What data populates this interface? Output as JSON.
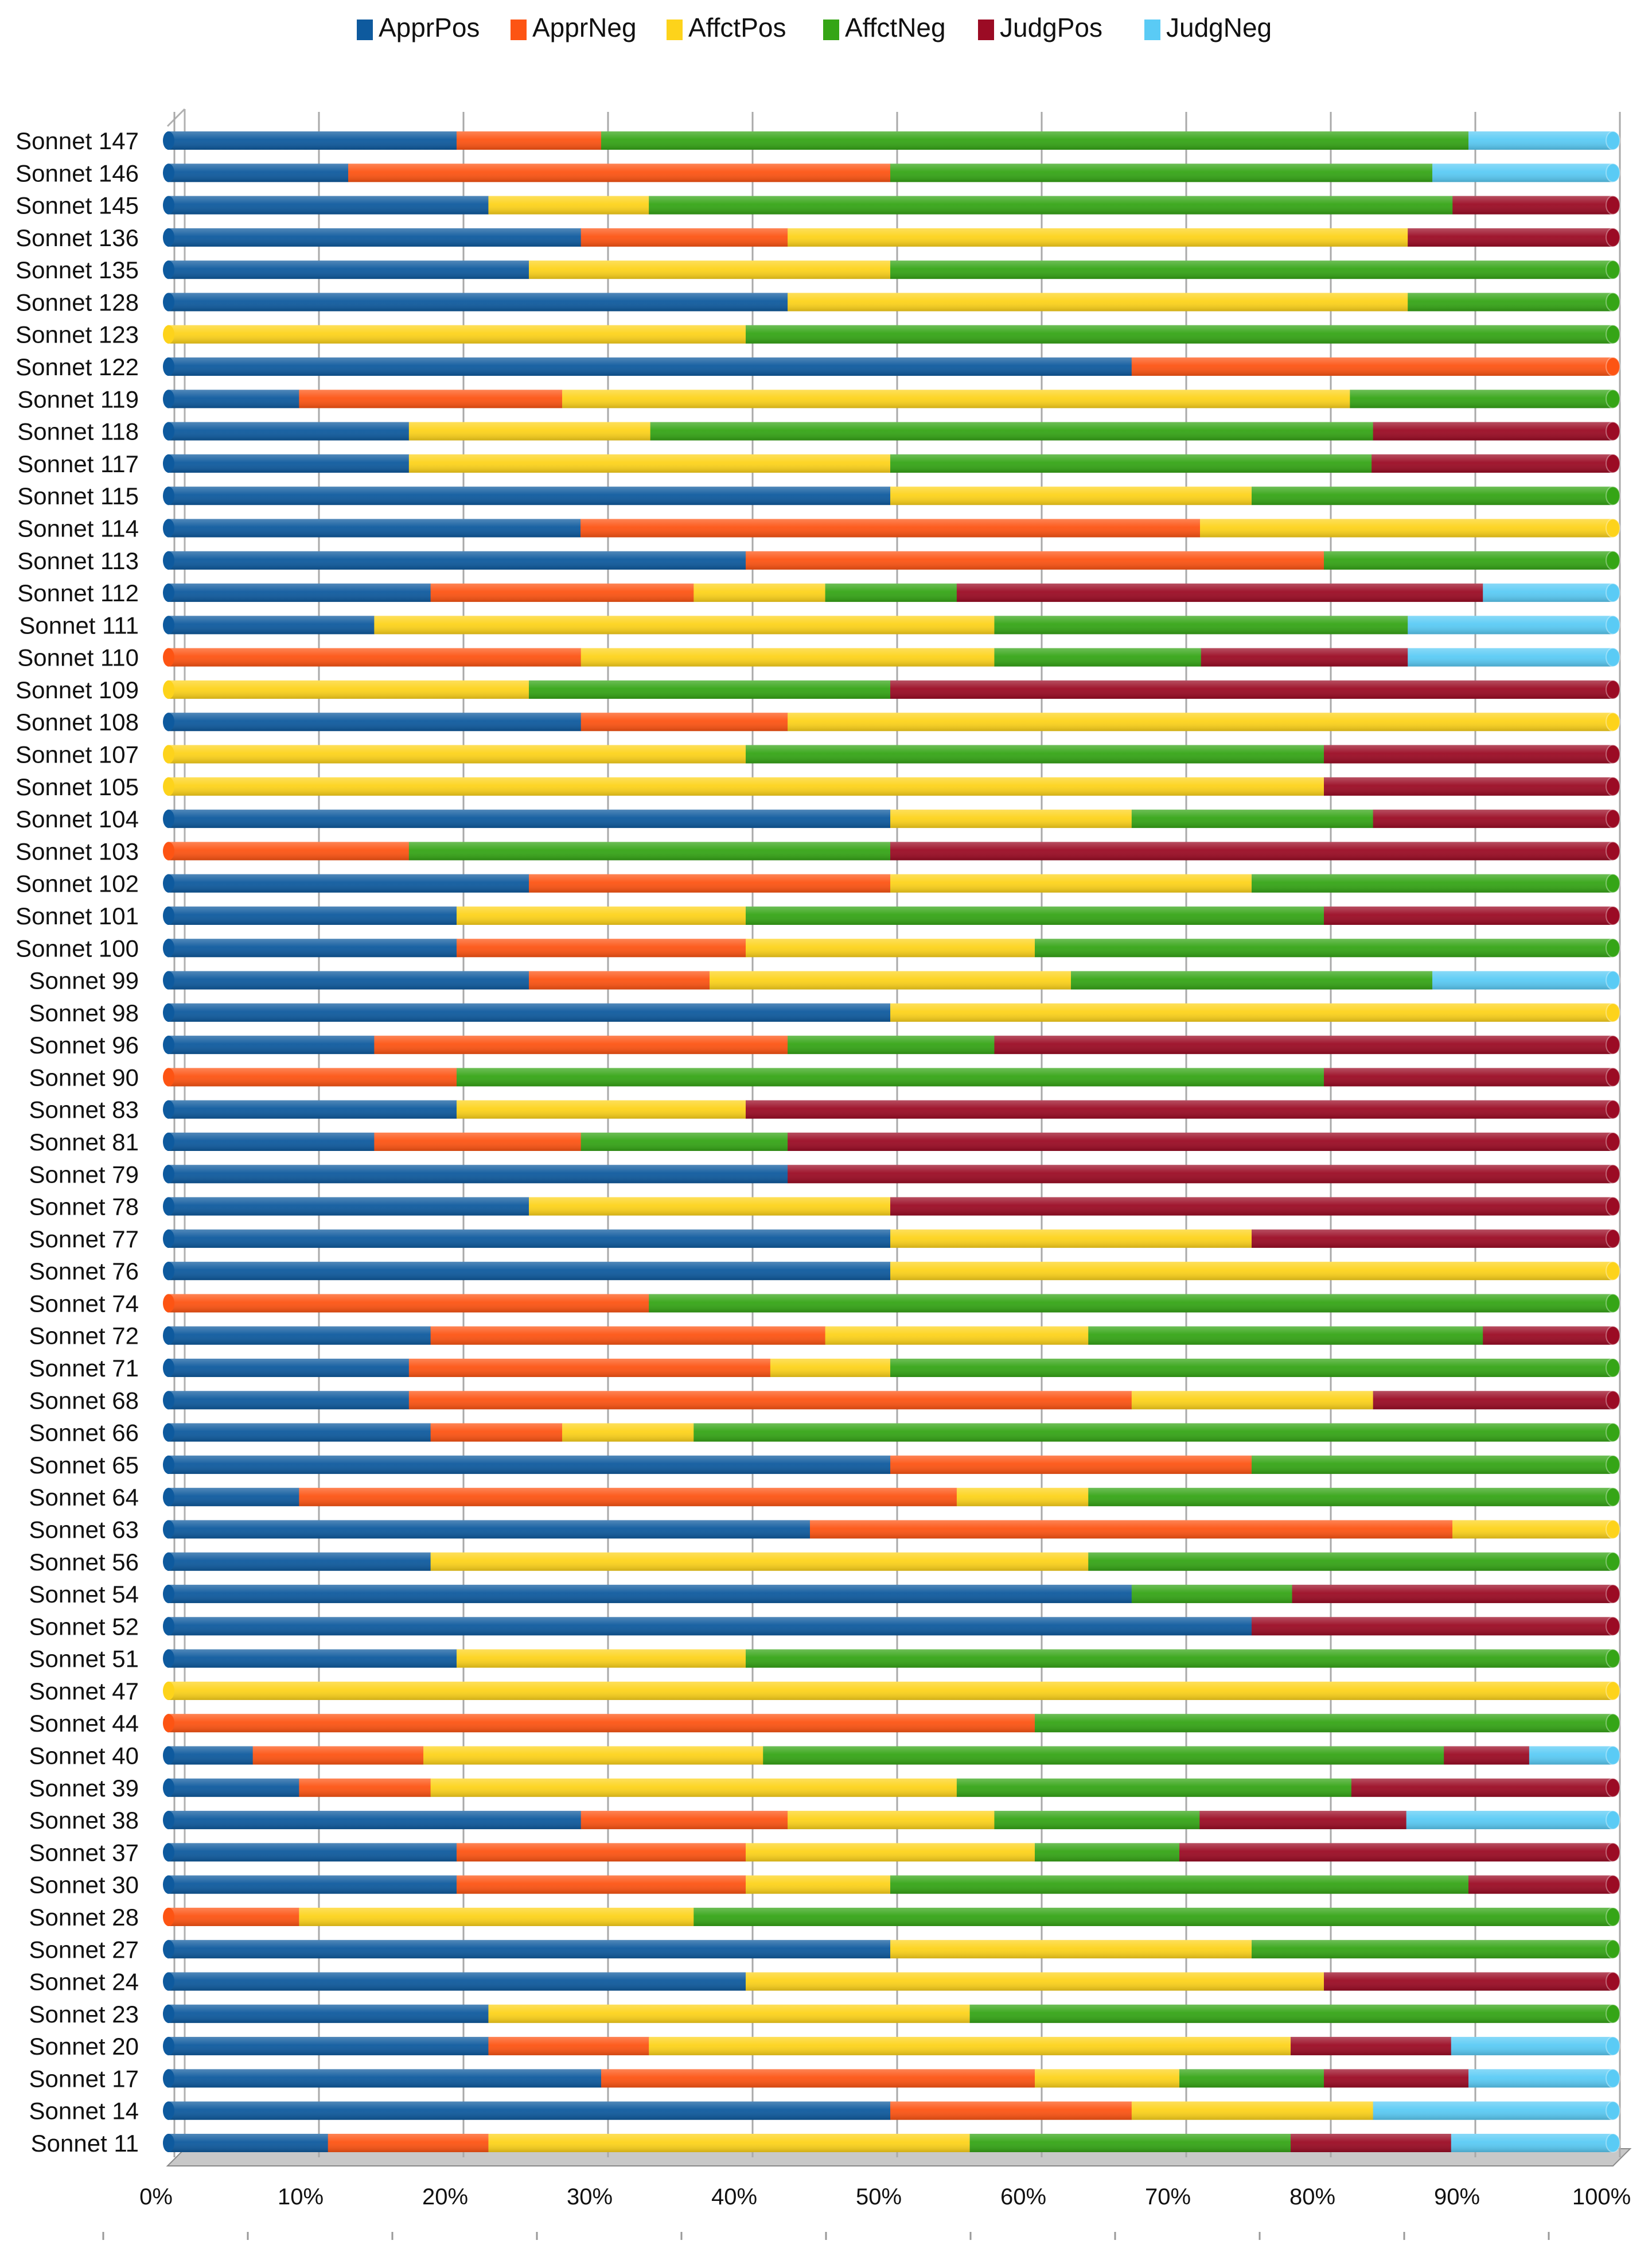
{
  "chart_data": {
    "type": "bar",
    "stacked": "percent",
    "orientation": "horizontal",
    "title": "",
    "xlabel": "",
    "ylabel": "",
    "xlim": [
      0,
      100
    ],
    "x_ticks": [
      "0%",
      "10%",
      "20%",
      "30%",
      "40%",
      "50%",
      "60%",
      "70%",
      "80%",
      "90%",
      "100%"
    ],
    "grid": true,
    "legend_position": "top",
    "series_names": [
      "ApprPos",
      "ApprNeg",
      "AffctPos",
      "AffctNeg",
      "JudgPos",
      "JudgNeg"
    ],
    "colors": [
      "#0e5a9e",
      "#fd5413",
      "#fdd31b",
      "#35a516",
      "#9b0b24",
      "#5acbf5"
    ],
    "categories": [
      "Sonnet 147",
      "Sonnet 146",
      "Sonnet 145",
      "Sonnet 136",
      "Sonnet 135",
      "Sonnet 128",
      "Sonnet 123",
      "Sonnet 122",
      "Sonnet 119",
      "Sonnet 118",
      "Sonnet 117",
      "Sonnet 115",
      "Sonnet 114",
      "Sonnet 113",
      "Sonnet 112",
      "Sonnet 111",
      "Sonnet 110",
      "Sonnet 109",
      "Sonnet 108",
      "Sonnet 107",
      "Sonnet 105",
      "Sonnet 104",
      "Sonnet 103",
      "Sonnet 102",
      "Sonnet 101",
      "Sonnet 100",
      "Sonnet 99",
      "Sonnet 98",
      "Sonnet 96",
      "Sonnet 90",
      "Sonnet 83",
      "Sonnet 81",
      "Sonnet 79",
      "Sonnet 78",
      "Sonnet 77",
      "Sonnet 76",
      "Sonnet 74",
      "Sonnet 72",
      "Sonnet 71",
      "Sonnet 68",
      "Sonnet 66",
      "Sonnet 65",
      "Sonnet 64",
      "Sonnet 63",
      "Sonnet 56",
      "Sonnet 54",
      "Sonnet 52",
      "Sonnet 51",
      "Sonnet 47",
      "Sonnet 44",
      "Sonnet 40",
      "Sonnet 39",
      "Sonnet 38",
      "Sonnet 37",
      "Sonnet 30",
      "Sonnet 28",
      "Sonnet 27",
      "Sonnet 24",
      "Sonnet 23",
      "Sonnet 20",
      "Sonnet 17",
      "Sonnet 14",
      "Sonnet 11"
    ],
    "series": [
      {
        "name": "ApprPos",
        "values": [
          20,
          12.5,
          22.2,
          28.6,
          25,
          42.9,
          0,
          66.7,
          9.1,
          16.7,
          16.7,
          50,
          28.6,
          40,
          18.2,
          14.3,
          0,
          0,
          28.6,
          0,
          0,
          50,
          0,
          25,
          20,
          20,
          25,
          50,
          14.3,
          0,
          20,
          14.3,
          42.9,
          25,
          50,
          50,
          0,
          18.2,
          16.7,
          16.7,
          18.2,
          50,
          9.1,
          44.4,
          18.2,
          66.7,
          75,
          20,
          0,
          0,
          5.9,
          9.1,
          28.6,
          20,
          20,
          0,
          50,
          40,
          22.2,
          22.2,
          30,
          50,
          11.1
        ]
      },
      {
        "name": "ApprNeg",
        "values": [
          10,
          37.5,
          0,
          14.3,
          0,
          0,
          0,
          33.3,
          18.2,
          0,
          0,
          0,
          42.9,
          40,
          18.2,
          0,
          28.6,
          0,
          14.3,
          0,
          0,
          0,
          16.7,
          25,
          0,
          20,
          12.5,
          0,
          28.6,
          20,
          0,
          14.3,
          0,
          0,
          0,
          0,
          33.3,
          27.3,
          25,
          50,
          9.1,
          25,
          45.5,
          44.4,
          0,
          0,
          0,
          0,
          0,
          60,
          11.8,
          9.1,
          14.3,
          20,
          20,
          9.1,
          0,
          0,
          0,
          11.1,
          30,
          16.7,
          11.1
        ]
      },
      {
        "name": "AffctPos",
        "values": [
          0,
          0,
          11.1,
          42.9,
          25,
          42.9,
          40,
          0,
          54.5,
          16.7,
          33.3,
          25,
          28.6,
          0,
          9.1,
          42.9,
          28.6,
          25,
          57.1,
          40,
          80,
          16.7,
          0,
          25,
          20,
          20,
          25,
          50,
          0,
          0,
          20,
          0,
          0,
          25,
          25,
          50,
          0,
          18.2,
          8.3,
          16.7,
          9.1,
          0,
          9.1,
          11.1,
          45.5,
          0,
          0,
          20,
          100,
          0,
          23.5,
          36.4,
          14.3,
          20,
          10,
          27.3,
          25,
          40,
          33.3,
          44.4,
          10,
          16.7,
          33.3
        ]
      },
      {
        "name": "AffctNeg",
        "values": [
          60,
          37.5,
          55.6,
          0,
          50,
          14.2,
          60,
          0,
          18.2,
          50,
          33.3,
          25,
          0,
          20,
          9.1,
          28.6,
          14.3,
          25,
          0,
          40,
          0,
          16.7,
          33.3,
          25,
          40,
          40,
          25,
          0,
          14.3,
          60,
          0,
          14.3,
          0,
          0,
          0,
          0,
          66.7,
          27.3,
          50,
          0,
          63.6,
          25,
          36.3,
          0,
          36.3,
          11.1,
          0,
          60,
          0,
          40,
          47.1,
          27.3,
          14.2,
          10,
          40,
          63.6,
          25,
          0,
          44.5,
          0,
          10,
          0,
          22.2
        ]
      },
      {
        "name": "JudgPos",
        "values": [
          0,
          0,
          11.1,
          14.2,
          0,
          0,
          0,
          0,
          0,
          16.6,
          16.7,
          0,
          0,
          0,
          36.4,
          0,
          14.3,
          50,
          0,
          20,
          20,
          16.6,
          50,
          0,
          20,
          0,
          0,
          0,
          42.8,
          20,
          60,
          57.1,
          57.1,
          50,
          25,
          0,
          0,
          9.0,
          0,
          16.6,
          0,
          0,
          0,
          0,
          0,
          22.2,
          25,
          0,
          0,
          0,
          5.9,
          18.1,
          14.3,
          30,
          10,
          0,
          0,
          20,
          0,
          11.1,
          10,
          0,
          11.1
        ]
      },
      {
        "name": "JudgNeg",
        "values": [
          10,
          12.5,
          0,
          0,
          0,
          0,
          0,
          0,
          0,
          0,
          0,
          0,
          0,
          0,
          9.0,
          14.2,
          14.2,
          0,
          0,
          0,
          0,
          0,
          0,
          0,
          0,
          0,
          12.5,
          0,
          0,
          0,
          0,
          0,
          0,
          0,
          0,
          0,
          0,
          0,
          0,
          0,
          0,
          0,
          0,
          0,
          0,
          0,
          0,
          0,
          0,
          0,
          5.8,
          0,
          14.3,
          0,
          0,
          0,
          0,
          0,
          0,
          11.2,
          10,
          16.6,
          11.2
        ]
      }
    ]
  }
}
